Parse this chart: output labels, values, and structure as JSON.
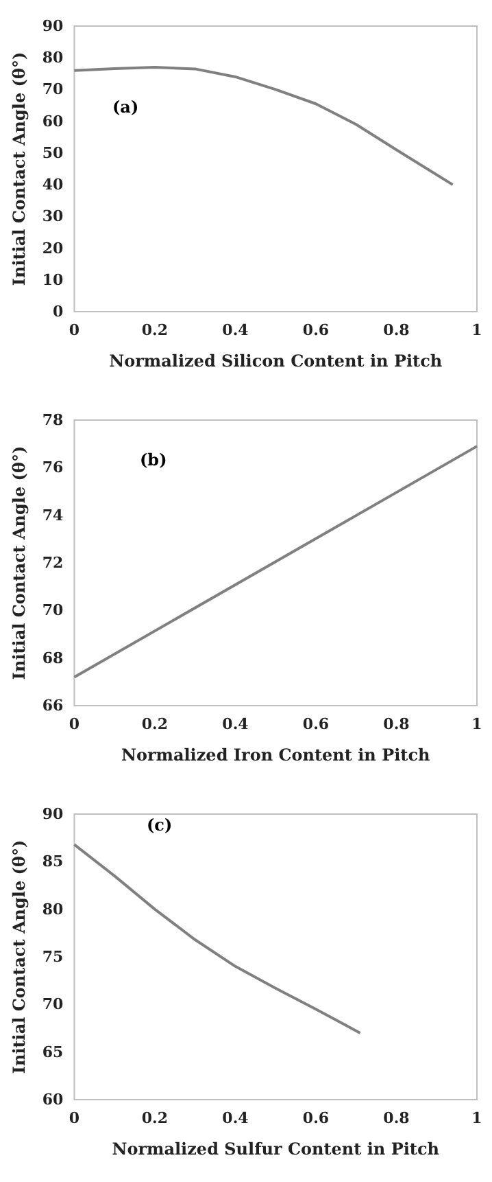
{
  "chart_data": [
    {
      "type": "line",
      "xlabel": "Normalized Silicon Content in Pitch",
      "ylabel": "Initial Contact Angle (θ°)",
      "annotations": [
        "(a)"
      ],
      "x": [
        0,
        0.1,
        0.2,
        0.3,
        0.4,
        0.5,
        0.6,
        0.7,
        0.8,
        0.94
      ],
      "series": [
        {
          "color": "#808080",
          "values": [
            76,
            76.6,
            77,
            76.5,
            74,
            70,
            65.5,
            59,
            51,
            40
          ]
        }
      ],
      "xlim": [
        0,
        1
      ],
      "xticks": [
        0,
        0.2,
        0.4,
        0.6,
        0.8,
        1
      ],
      "ylim": [
        0,
        90
      ],
      "yticks": [
        0,
        10,
        20,
        30,
        40,
        50,
        60,
        70,
        80,
        90
      ],
      "grid": false,
      "marker": "none",
      "line_style": "solid"
    },
    {
      "type": "line",
      "xlabel": "Normalized Iron Content in Pitch",
      "ylabel": "Initial Contact Angle (θ°)",
      "annotations": [
        "(b)"
      ],
      "x": [
        0,
        1
      ],
      "series": [
        {
          "color": "#808080",
          "values": [
            67.2,
            76.9
          ]
        }
      ],
      "xlim": [
        0,
        1
      ],
      "xticks": [
        0,
        0.2,
        0.4,
        0.6,
        0.8,
        1
      ],
      "ylim": [
        66,
        78
      ],
      "yticks": [
        66,
        68,
        70,
        72,
        74,
        76,
        78
      ],
      "grid": false,
      "marker": "none",
      "line_style": "solid"
    },
    {
      "type": "line",
      "xlabel": "Normalized Sulfur Content in Pitch",
      "ylabel": "Initial Contact Angle (θ°)",
      "annotations": [
        "(c)"
      ],
      "x": [
        0,
        0.1,
        0.2,
        0.3,
        0.4,
        0.5,
        0.6,
        0.71
      ],
      "series": [
        {
          "color": "#808080",
          "values": [
            86.8,
            83.5,
            80,
            76.8,
            74,
            71.7,
            69.5,
            67
          ]
        }
      ],
      "xlim": [
        0,
        1
      ],
      "xticks": [
        0,
        0.2,
        0.4,
        0.6,
        0.8,
        1
      ],
      "ylim": [
        60,
        90
      ],
      "yticks": [
        60,
        65,
        70,
        75,
        80,
        85,
        90
      ],
      "grid": false,
      "marker": "none",
      "line_style": "solid"
    }
  ]
}
